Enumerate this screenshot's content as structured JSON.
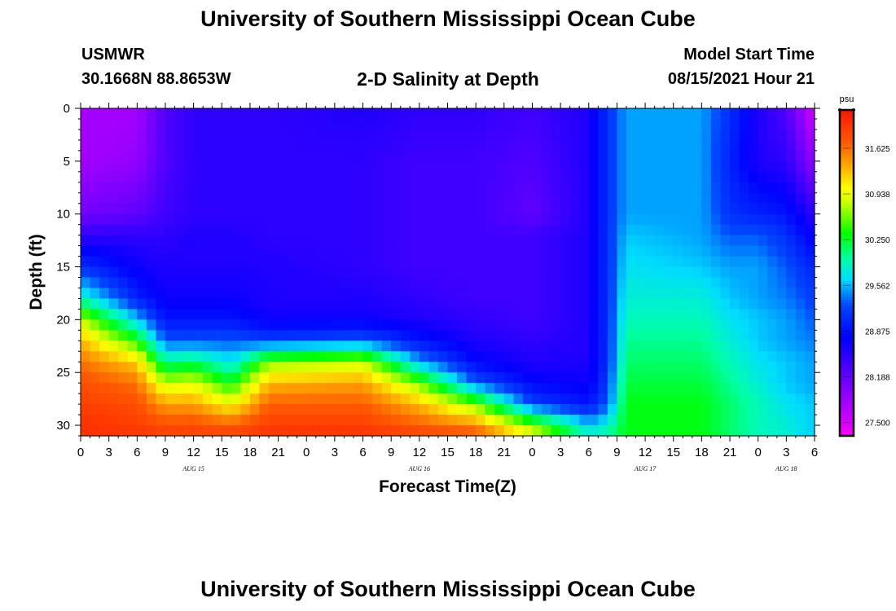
{
  "header": {
    "title": "University of Southern Mississippi Ocean Cube",
    "station": "USMWR",
    "coordinates": "30.1668N  88.8653W",
    "subtitle": "2-D Salinity at Depth",
    "model_start_label": "Model Start Time",
    "model_start_value": "08/15/2021 Hour 21"
  },
  "footer": {
    "title": "University of Southern Mississippi Ocean Cube"
  },
  "chart_data": {
    "type": "heatmap",
    "title": "2-D Salinity at Depth",
    "xlabel": "Forecast Time(Z)",
    "ylabel": "Depth (ft)",
    "x_tick_labels": [
      "0",
      "3",
      "6",
      "9",
      "12",
      "15",
      "18",
      "21",
      "0",
      "3",
      "6",
      "9",
      "12",
      "15",
      "18",
      "21",
      "0",
      "3",
      "6",
      "9",
      "12",
      "15",
      "18",
      "21",
      "0",
      "3",
      "6"
    ],
    "x_date_labels": [
      {
        "label": "AUG 15",
        "at_tick": 4
      },
      {
        "label": "AUG 16",
        "at_tick": 12
      },
      {
        "label": "AUG 17",
        "at_tick": 20
      },
      {
        "label": "AUG 18",
        "at_tick": 25
      }
    ],
    "y_ticks": [
      0,
      5,
      10,
      15,
      20,
      25,
      30
    ],
    "ylim": [
      0,
      31
    ],
    "y_inverted": true,
    "colorbar": {
      "unit": "psu",
      "labels": [
        "31.625",
        "30.938",
        "30.250",
        "29.562",
        "28.875",
        "28.188",
        "27.500"
      ],
      "range": [
        27.3,
        32.2
      ]
    },
    "profile_depths": [
      0,
      5,
      10,
      12,
      15,
      18,
      20,
      22,
      24,
      26,
      28,
      30,
      31
    ],
    "profiles": [
      {
        "hour": 0,
        "values": [
          27.8,
          27.8,
          28.1,
          28.5,
          29.1,
          29.9,
          30.8,
          31.3,
          31.6,
          31.8,
          31.9,
          32.0,
          32.0
        ]
      },
      {
        "hour": 6,
        "values": [
          27.8,
          27.9,
          28.2,
          28.5,
          28.7,
          29.0,
          29.6,
          30.4,
          31.2,
          31.6,
          31.8,
          31.9,
          32.0
        ]
      },
      {
        "hour": 9,
        "values": [
          28.3,
          28.3,
          28.4,
          28.5,
          28.6,
          28.7,
          28.9,
          29.3,
          30.0,
          30.8,
          31.4,
          31.8,
          31.9
        ]
      },
      {
        "hour": 12,
        "values": [
          28.5,
          28.5,
          28.5,
          28.6,
          28.6,
          28.7,
          28.9,
          29.3,
          30.1,
          30.9,
          31.4,
          31.8,
          31.9
        ]
      },
      {
        "hour": 16,
        "values": [
          28.5,
          28.5,
          28.5,
          28.6,
          28.6,
          28.7,
          28.9,
          29.3,
          29.7,
          30.3,
          31.0,
          31.7,
          31.9
        ]
      },
      {
        "hour": 20,
        "values": [
          28.5,
          28.5,
          28.5,
          28.5,
          28.6,
          28.6,
          28.7,
          29.2,
          30.6,
          31.3,
          31.7,
          31.9,
          32.0
        ]
      },
      {
        "hour": 30,
        "values": [
          28.6,
          28.5,
          28.5,
          28.5,
          28.5,
          28.6,
          28.7,
          29.3,
          30.8,
          31.4,
          31.7,
          31.9,
          32.0
        ]
      },
      {
        "hour": 36,
        "values": [
          28.5,
          28.4,
          28.4,
          28.4,
          28.4,
          28.5,
          28.6,
          28.9,
          29.5,
          30.6,
          31.3,
          31.7,
          31.9
        ]
      },
      {
        "hour": 42,
        "values": [
          28.5,
          28.4,
          28.4,
          28.4,
          28.4,
          28.4,
          28.5,
          28.6,
          28.8,
          29.3,
          30.6,
          31.5,
          31.8
        ]
      },
      {
        "hour": 48,
        "values": [
          28.4,
          28.3,
          28.2,
          28.4,
          28.4,
          28.4,
          28.4,
          28.5,
          28.6,
          28.8,
          29.2,
          30.6,
          31.0
        ]
      },
      {
        "hour": 54,
        "values": [
          28.6,
          28.6,
          28.6,
          28.6,
          28.6,
          28.6,
          28.6,
          28.6,
          28.6,
          28.7,
          28.9,
          29.6,
          29.9
        ]
      },
      {
        "hour": 56,
        "values": [
          29.1,
          29.1,
          29.1,
          29.1,
          29.1,
          29.1,
          29.1,
          29.1,
          29.1,
          29.2,
          29.3,
          29.8,
          30.0
        ]
      },
      {
        "hour": 58,
        "values": [
          29.5,
          29.5,
          29.5,
          29.6,
          29.7,
          29.8,
          29.9,
          30.0,
          30.1,
          30.2,
          30.3,
          30.3,
          30.3
        ]
      },
      {
        "hour": 66,
        "values": [
          29.5,
          29.5,
          29.5,
          29.5,
          29.6,
          29.8,
          29.9,
          30.0,
          30.1,
          30.2,
          30.3,
          30.3,
          30.3
        ]
      },
      {
        "hour": 69,
        "values": [
          29.1,
          29.0,
          29.1,
          29.3,
          29.5,
          29.6,
          29.7,
          29.8,
          29.9,
          30.0,
          30.1,
          30.1,
          30.1
        ]
      },
      {
        "hour": 72,
        "values": [
          28.6,
          28.6,
          29.0,
          29.3,
          29.5,
          29.5,
          29.6,
          29.6,
          29.7,
          29.8,
          29.9,
          29.9,
          29.9
        ]
      },
      {
        "hour": 75,
        "values": [
          28.3,
          28.5,
          28.9,
          29.1,
          29.3,
          29.4,
          29.5,
          29.5,
          29.6,
          29.6,
          29.7,
          29.8,
          29.8
        ]
      },
      {
        "hour": 78,
        "values": [
          27.5,
          27.9,
          28.5,
          28.7,
          29.0,
          29.2,
          29.3,
          29.4,
          29.5,
          29.5,
          29.6,
          29.6,
          29.6
        ]
      }
    ]
  }
}
